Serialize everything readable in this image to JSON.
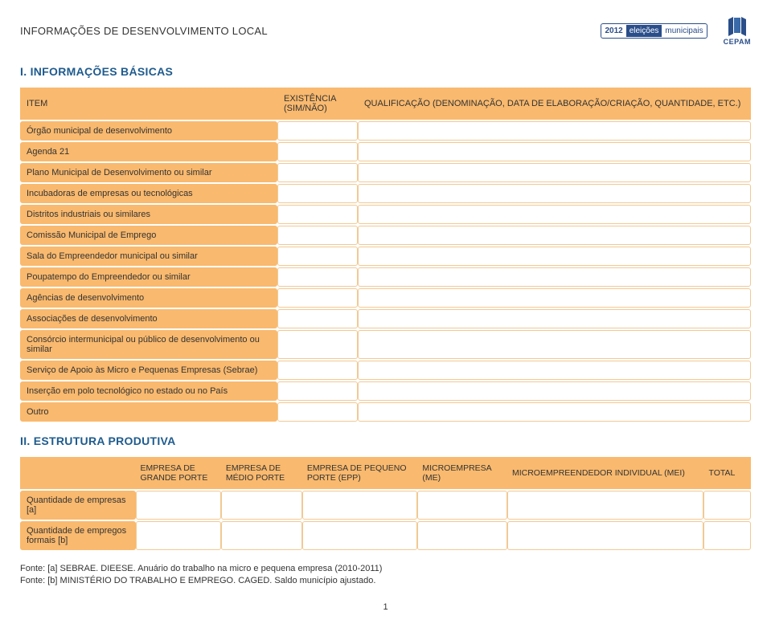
{
  "header": {
    "title": "INFORMAÇÕES DE DESENVOLVIMENTO LOCAL",
    "badge": {
      "year": "2012",
      "word1": "eleições",
      "word2": "municipais"
    },
    "logo_text": "CEPAM"
  },
  "section1": {
    "title": "I. INFORMAÇÕES BÁSICAS",
    "col1": "ITEM",
    "col2": "EXISTÊNCIA (SIM/NÃO)",
    "col3": "QUALIFICAÇÃO (DENOMINAÇÃO, DATA DE ELABORAÇÃO/CRIAÇÃO, QUANTIDADE, ETC.)",
    "rows": [
      "Órgão municipal de desenvolvimento",
      "Agenda 21",
      "Plano Municipal de Desenvolvimento ou similar",
      "Incubadoras  de empresas ou tecnológicas",
      "Distritos industriais ou similares",
      "Comissão Municipal de Emprego",
      "Sala do Empreendedor municipal ou similar",
      "Poupatempo do Empreendedor ou similar",
      "Agências de desenvolvimento",
      "Associações de desenvolvimento",
      "Consórcio intermunicipal ou público de desenvolvimento ou similar",
      "Serviço de Apoio às Micro e Pequenas Empresas (Sebrae)",
      "Inserção em polo tecnológico no estado ou no País",
      "Outro"
    ]
  },
  "section2": {
    "title": "II. ESTRUTURA PRODUTIVA",
    "cols": [
      "",
      "EMPRESA DE GRANDE PORTE",
      "EMPRESA DE MÉDIO PORTE",
      "EMPRESA DE PEQUENO PORTE (EPP)",
      "MICROEMPRESA (ME)",
      "MICROEMPREENDEDOR INDIVIDUAL (MEI)",
      "TOTAL"
    ],
    "rows": [
      "Quantidade de empresas [a]",
      "Quantidade de empregos formais [b]"
    ]
  },
  "footer": {
    "line1": "Fonte: [a] SEBRAE. DIEESE. Anuário do trabalho na micro e pequena empresa (2010-2011)",
    "line2": "Fonte: [b] MINISTÉRIO DO TRABALHO E EMPREGO. CAGED. Saldo município ajustado."
  },
  "page": "1",
  "colors": {
    "header_bg": "#f9b96e",
    "cell_border": "#f2c993",
    "title_color": "#1e5b8e",
    "badge_color": "#2a4e8a"
  }
}
